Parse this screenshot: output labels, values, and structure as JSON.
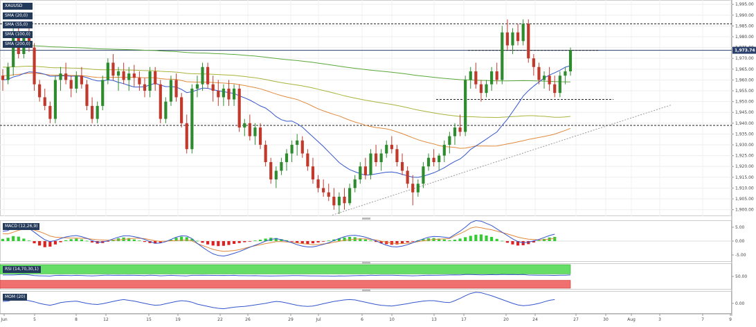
{
  "legend": {
    "symbol": "XAUUSD",
    "indicators": [
      "SMA (20,0)",
      "SMA (55,0)",
      "SMA (100,0)",
      "SMA (200,0)"
    ]
  },
  "price_tag": "1,973.74",
  "panes": {
    "macd_label": "MACD (12,26,9)",
    "rsi_label": "RSI (14,70,30,1)",
    "mom_label": "MOM (20)"
  },
  "colors": {
    "bull": "#2e8b2e",
    "bear": "#c0392b",
    "sma20": "#3355cc",
    "sma55": "#e08a3c",
    "sma100": "#a7b43a",
    "sma200": "#5aa73a",
    "macd_line": "#3355cc",
    "signal_line": "#e08a3c",
    "hist_pos": "#33cc33",
    "hist_neg": "#dd2222",
    "rsi_overbought": "#66dd66",
    "rsi_oversold": "#f07070",
    "mom_line": "#3355cc",
    "legend_bg": "#243a5a"
  },
  "chart_data": [
    {
      "type": "candlestick",
      "title": "XAUUSD",
      "x_ticks": [
        "Jun",
        "5",
        "8",
        "12",
        "15",
        "19",
        "22",
        "26",
        "29",
        "Jul",
        "6",
        "10",
        "13",
        "17",
        "20",
        "24",
        "27",
        "30",
        "Aug",
        "3",
        "7",
        "9"
      ],
      "ylim": [
        1897,
        1997
      ],
      "y_ticks": [
        "1,900.00",
        "1,905.00",
        "1,910.00",
        "1,915.00",
        "1,920.00",
        "1,925.00",
        "1,930.00",
        "1,935.00",
        "1,940.00",
        "1,945.00",
        "1,950.00",
        "1,955.00",
        "1,960.00",
        "1,965.00",
        "1,970.00",
        "1,975.00",
        "1,980.00",
        "1,985.00",
        "1,990.00",
        "1,995.00"
      ],
      "last_price": 1973.74,
      "horizontal_levels": [
        1986.0,
        1973.74,
        1951.0,
        1939.0
      ],
      "candles": [
        [
          1962,
          1965,
          1955,
          1960
        ],
        [
          1960,
          1968,
          1958,
          1966
        ],
        [
          1966,
          1985,
          1962,
          1982
        ],
        [
          1982,
          1984,
          1970,
          1972
        ],
        [
          1972,
          1982,
          1970,
          1980
        ],
        [
          1980,
          1985,
          1973,
          1975
        ],
        [
          1975,
          1977,
          1955,
          1958
        ],
        [
          1958,
          1960,
          1950,
          1952
        ],
        [
          1952,
          1956,
          1946,
          1948
        ],
        [
          1948,
          1950,
          1940,
          1942
        ],
        [
          1942,
          1962,
          1940,
          1960
        ],
        [
          1960,
          1966,
          1955,
          1963
        ],
        [
          1963,
          1968,
          1958,
          1960
        ],
        [
          1960,
          1962,
          1952,
          1956
        ],
        [
          1956,
          1964,
          1954,
          1962
        ],
        [
          1962,
          1966,
          1956,
          1958
        ],
        [
          1958,
          1960,
          1946,
          1948
        ],
        [
          1948,
          1952,
          1940,
          1942
        ],
        [
          1942,
          1950,
          1940,
          1948
        ],
        [
          1948,
          1962,
          1946,
          1960
        ],
        [
          1960,
          1970,
          1958,
          1968
        ],
        [
          1968,
          1972,
          1960,
          1962
        ],
        [
          1962,
          1966,
          1955,
          1964
        ],
        [
          1964,
          1968,
          1958,
          1960
        ],
        [
          1960,
          1966,
          1955,
          1963
        ],
        [
          1963,
          1967,
          1957,
          1961
        ],
        [
          1961,
          1964,
          1955,
          1958
        ],
        [
          1958,
          1961,
          1952,
          1955
        ],
        [
          1955,
          1966,
          1952,
          1964
        ],
        [
          1964,
          1966,
          1955,
          1958
        ],
        [
          1958,
          1960,
          1940,
          1942
        ],
        [
          1942,
          1952,
          1940,
          1950
        ],
        [
          1950,
          1962,
          1948,
          1960
        ],
        [
          1960,
          1963,
          1950,
          1952
        ],
        [
          1952,
          1954,
          1938,
          1940
        ],
        [
          1940,
          1944,
          1926,
          1928
        ],
        [
          1928,
          1958,
          1926,
          1956
        ],
        [
          1956,
          1962,
          1952,
          1958
        ],
        [
          1958,
          1968,
          1955,
          1966
        ],
        [
          1966,
          1968,
          1956,
          1958
        ],
        [
          1958,
          1962,
          1950,
          1955
        ],
        [
          1955,
          1960,
          1948,
          1952
        ],
        [
          1952,
          1958,
          1948,
          1956
        ],
        [
          1956,
          1960,
          1948,
          1951
        ],
        [
          1951,
          1958,
          1948,
          1956
        ],
        [
          1956,
          1958,
          1936,
          1938
        ],
        [
          1938,
          1942,
          1934,
          1940
        ],
        [
          1940,
          1944,
          1932,
          1934
        ],
        [
          1934,
          1940,
          1930,
          1938
        ],
        [
          1938,
          1940,
          1928,
          1930
        ],
        [
          1930,
          1932,
          1920,
          1922
        ],
        [
          1922,
          1924,
          1912,
          1914
        ],
        [
          1914,
          1920,
          1910,
          1918
        ],
        [
          1918,
          1924,
          1916,
          1922
        ],
        [
          1922,
          1928,
          1918,
          1926
        ],
        [
          1926,
          1932,
          1922,
          1930
        ],
        [
          1930,
          1935,
          1925,
          1932
        ],
        [
          1932,
          1934,
          1924,
          1926
        ],
        [
          1926,
          1928,
          1918,
          1920
        ],
        [
          1920,
          1924,
          1912,
          1914
        ],
        [
          1914,
          1916,
          1908,
          1910
        ],
        [
          1910,
          1914,
          1906,
          1908
        ],
        [
          1908,
          1912,
          1904,
          1906
        ],
        [
          1906,
          1910,
          1900,
          1902
        ],
        [
          1902,
          1908,
          1898,
          1906
        ],
        [
          1906,
          1910,
          1900,
          1903
        ],
        [
          1903,
          1912,
          1902,
          1910
        ],
        [
          1910,
          1916,
          1908,
          1914
        ],
        [
          1914,
          1922,
          1912,
          1920
        ],
        [
          1920,
          1924,
          1914,
          1916
        ],
        [
          1916,
          1928,
          1914,
          1926
        ],
        [
          1926,
          1930,
          1920,
          1922
        ],
        [
          1922,
          1928,
          1918,
          1926
        ],
        [
          1926,
          1932,
          1924,
          1930
        ],
        [
          1930,
          1934,
          1926,
          1928
        ],
        [
          1928,
          1930,
          1920,
          1922
        ],
        [
          1922,
          1926,
          1916,
          1918
        ],
        [
          1918,
          1920,
          1910,
          1912
        ],
        [
          1912,
          1916,
          1902,
          1908
        ],
        [
          1908,
          1914,
          1906,
          1912
        ],
        [
          1912,
          1922,
          1910,
          1920
        ],
        [
          1920,
          1926,
          1918,
          1924
        ],
        [
          1924,
          1928,
          1920,
          1922
        ],
        [
          1922,
          1926,
          1918,
          1925
        ],
        [
          1925,
          1932,
          1922,
          1930
        ],
        [
          1930,
          1936,
          1926,
          1934
        ],
        [
          1934,
          1940,
          1930,
          1938
        ],
        [
          1938,
          1944,
          1934,
          1936
        ],
        [
          1936,
          1962,
          1934,
          1960
        ],
        [
          1960,
          1966,
          1956,
          1964
        ],
        [
          1964,
          1968,
          1956,
          1958
        ],
        [
          1958,
          1960,
          1950,
          1954
        ],
        [
          1954,
          1960,
          1952,
          1958
        ],
        [
          1958,
          1966,
          1955,
          1964
        ],
        [
          1964,
          1968,
          1958,
          1960
        ],
        [
          1960,
          1985,
          1958,
          1982
        ],
        [
          1982,
          1988,
          1974,
          1976
        ],
        [
          1976,
          1984,
          1972,
          1982
        ],
        [
          1982,
          1986,
          1976,
          1978
        ],
        [
          1978,
          1988,
          1976,
          1986
        ],
        [
          1986,
          1988,
          1968,
          1970
        ],
        [
          1970,
          1972,
          1962,
          1966
        ],
        [
          1966,
          1968,
          1958,
          1960
        ],
        [
          1960,
          1964,
          1956,
          1962
        ],
        [
          1962,
          1966,
          1955,
          1958
        ],
        [
          1958,
          1962,
          1952,
          1954
        ],
        [
          1954,
          1964,
          1952,
          1962
        ],
        [
          1962,
          1966,
          1958,
          1964
        ],
        [
          1964,
          1975,
          1962,
          1973.74
        ]
      ]
    },
    {
      "type": "bar",
      "title": "MACD (12,26,9)",
      "ylim": [
        -7.5,
        7.5
      ],
      "y_ticks": [
        "5.00",
        "0.00",
        "-5.00"
      ],
      "series_note": "histogram plus MACD and signal lines",
      "histogram": [
        0.8,
        1.2,
        1.8,
        1.6,
        0.9,
        0.2,
        -0.8,
        -1.6,
        -2.2,
        -2.0,
        -1.2,
        -0.4,
        0.3,
        0.7,
        0.9,
        0.6,
        0.1,
        -0.5,
        -0.9,
        -0.7,
        -0.2,
        0.4,
        1.0,
        1.3,
        1.1,
        0.6,
        0.2,
        -0.3,
        -0.7,
        -0.9,
        -0.6,
        -0.2,
        0.5,
        1.2,
        1.6,
        1.4,
        0.8,
        0.1,
        -0.6,
        -1.2,
        -1.6,
        -1.8,
        -1.7,
        -1.4,
        -1.0,
        -0.7,
        -0.4,
        -0.1,
        0.2,
        0.5,
        0.9,
        1.2,
        1.1,
        0.7,
        0.3,
        -0.2,
        -0.6,
        -0.9,
        -1.0,
        -0.8,
        -0.5,
        -0.2,
        0.2,
        0.6,
        1.0,
        1.3,
        1.5,
        1.4,
        1.0,
        0.6,
        0.2,
        -0.3,
        -0.8,
        -1.1,
        -1.3,
        -1.2,
        -0.9,
        -0.5,
        -0.1,
        0.3,
        0.7,
        1.0,
        1.1,
        0.9,
        0.6,
        0.3,
        0.5,
        0.9,
        1.4,
        1.9,
        2.3,
        2.4,
        2.0,
        1.5,
        0.8,
        0.1,
        -0.6,
        -1.2,
        -1.6,
        -1.5,
        -1.1,
        -0.5,
        0.2,
        0.8,
        1.3,
        1.5
      ],
      "macd_line": [
        3.5,
        3.8,
        5.0,
        5.5,
        5.2,
        4.6,
        3.2,
        1.8,
        0.5,
        -0.2,
        0.2,
        0.9,
        1.5,
        1.8,
        2.0,
        1.6,
        1.0,
        0.2,
        -0.4,
        -0.3,
        0.1,
        0.8,
        1.4,
        1.9,
        1.9,
        1.6,
        1.2,
        0.6,
        -0.2,
        -0.8,
        -0.7,
        -0.2,
        0.6,
        1.4,
        1.9,
        1.8,
        0.9,
        -0.8,
        -2.2,
        -3.5,
        -4.6,
        -5.2,
        -5.4,
        -5.0,
        -4.4,
        -3.8,
        -3.0,
        -2.2,
        -1.5,
        -0.8,
        0.0,
        0.6,
        0.9,
        0.5,
        0.0,
        -0.6,
        -1.3,
        -1.8,
        -2.1,
        -2.1,
        -1.7,
        -1.2,
        -0.6,
        0.2,
        0.9,
        1.6,
        2.0,
        2.1,
        1.8,
        1.4,
        0.8,
        0.1,
        -0.8,
        -1.5,
        -2.0,
        -2.1,
        -1.8,
        -1.3,
        -0.6,
        0.1,
        0.8,
        1.4,
        1.7,
        1.6,
        1.4,
        1.2,
        2.4,
        3.6,
        5.0,
        6.6,
        7.4,
        7.2,
        6.4,
        5.6,
        4.4,
        3.2,
        2.0,
        0.8,
        -0.2,
        -0.6,
        -0.4,
        0.1,
        0.6,
        1.3,
        2.0,
        2.5
      ],
      "signal_line": [
        2.7,
        2.6,
        3.2,
        3.9,
        4.3,
        4.4,
        4.0,
        3.4,
        2.7,
        1.8,
        1.4,
        1.3,
        1.2,
        1.1,
        1.1,
        1.0,
        0.9,
        0.7,
        0.5,
        0.4,
        0.3,
        0.4,
        0.4,
        0.6,
        0.8,
        1.0,
        1.0,
        0.9,
        0.5,
        0.1,
        -0.1,
        0.0,
        0.1,
        0.2,
        0.3,
        0.4,
        0.1,
        -0.9,
        -1.6,
        -2.3,
        -3.0,
        -3.4,
        -3.7,
        -3.6,
        -3.4,
        -3.1,
        -2.6,
        -2.1,
        -1.7,
        -1.3,
        -0.9,
        -0.6,
        -0.2,
        -0.2,
        -0.3,
        -0.4,
        -0.7,
        -0.9,
        -1.1,
        -1.3,
        -1.2,
        -1.0,
        -0.8,
        -0.4,
        -0.1,
        0.3,
        0.5,
        0.7,
        0.8,
        0.8,
        0.6,
        0.4,
        0.0,
        -0.4,
        -0.7,
        -0.9,
        -0.9,
        -0.8,
        -0.5,
        -0.2,
        0.1,
        0.4,
        0.6,
        0.7,
        0.8,
        0.9,
        1.9,
        2.7,
        3.6,
        4.7,
        5.1,
        4.8,
        4.4,
        4.1,
        3.6,
        3.1,
        2.6,
        2.0,
        1.4,
        1.0,
        0.7,
        0.6,
        0.4,
        0.5,
        0.7,
        1.0
      ]
    },
    {
      "type": "line",
      "title": "RSI (14,70,30,1)",
      "y_ticks": [
        "50.00"
      ],
      "overbought": 70,
      "oversold": 30
    },
    {
      "type": "line",
      "title": "MOM (20)",
      "y_ticks": [
        "0.00"
      ],
      "ylim": [
        -55,
        65
      ],
      "values": [
        10,
        12,
        20,
        25,
        18,
        14,
        8,
        0,
        -6,
        -10,
        -4,
        4,
        8,
        10,
        12,
        6,
        0,
        -4,
        -6,
        -2,
        4,
        10,
        16,
        20,
        16,
        12,
        6,
        0,
        -6,
        -10,
        -8,
        -2,
        4,
        10,
        14,
        12,
        6,
        -4,
        -10,
        -16,
        -22,
        -26,
        -28,
        -24,
        -20,
        -18,
        -16,
        -12,
        -8,
        -4,
        0,
        6,
        10,
        8,
        2,
        -4,
        -10,
        -14,
        -16,
        -14,
        -8,
        -2,
        4,
        10,
        14,
        18,
        20,
        18,
        12,
        6,
        0,
        -6,
        -10,
        -12,
        -14,
        -10,
        -6,
        -2,
        4,
        8,
        12,
        14,
        14,
        10,
        6,
        4,
        14,
        26,
        40,
        52,
        58,
        56,
        48,
        40,
        30,
        20,
        10,
        0,
        -8,
        -12,
        -10,
        -6,
        0,
        8,
        16,
        20
      ]
    }
  ]
}
